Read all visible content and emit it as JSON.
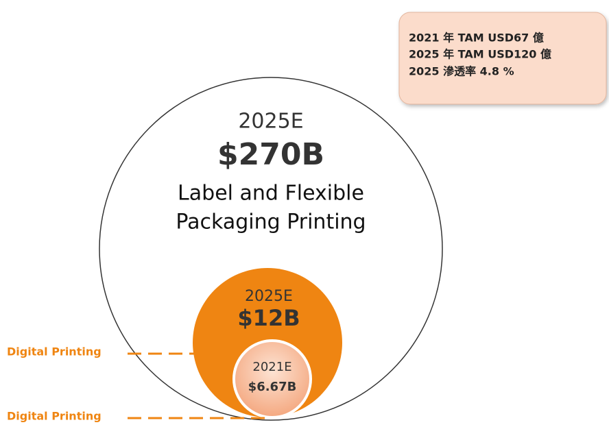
{
  "info_box": {
    "lines": [
      "2021 年 TAM USD67 億",
      "2025 年 TAM USD120 億",
      "2025 滲透率  4.8 %"
    ]
  },
  "outer": {
    "year": "2025E",
    "value": "$270B",
    "label_lines": [
      "Label and Flexible",
      "Packaging Printing"
    ]
  },
  "middle": {
    "year": "2025E",
    "value": "$12B"
  },
  "inner": {
    "year": "2021E",
    "value": "$6.67B"
  },
  "callouts": [
    "Digital Printing",
    "Digital Printing"
  ]
}
